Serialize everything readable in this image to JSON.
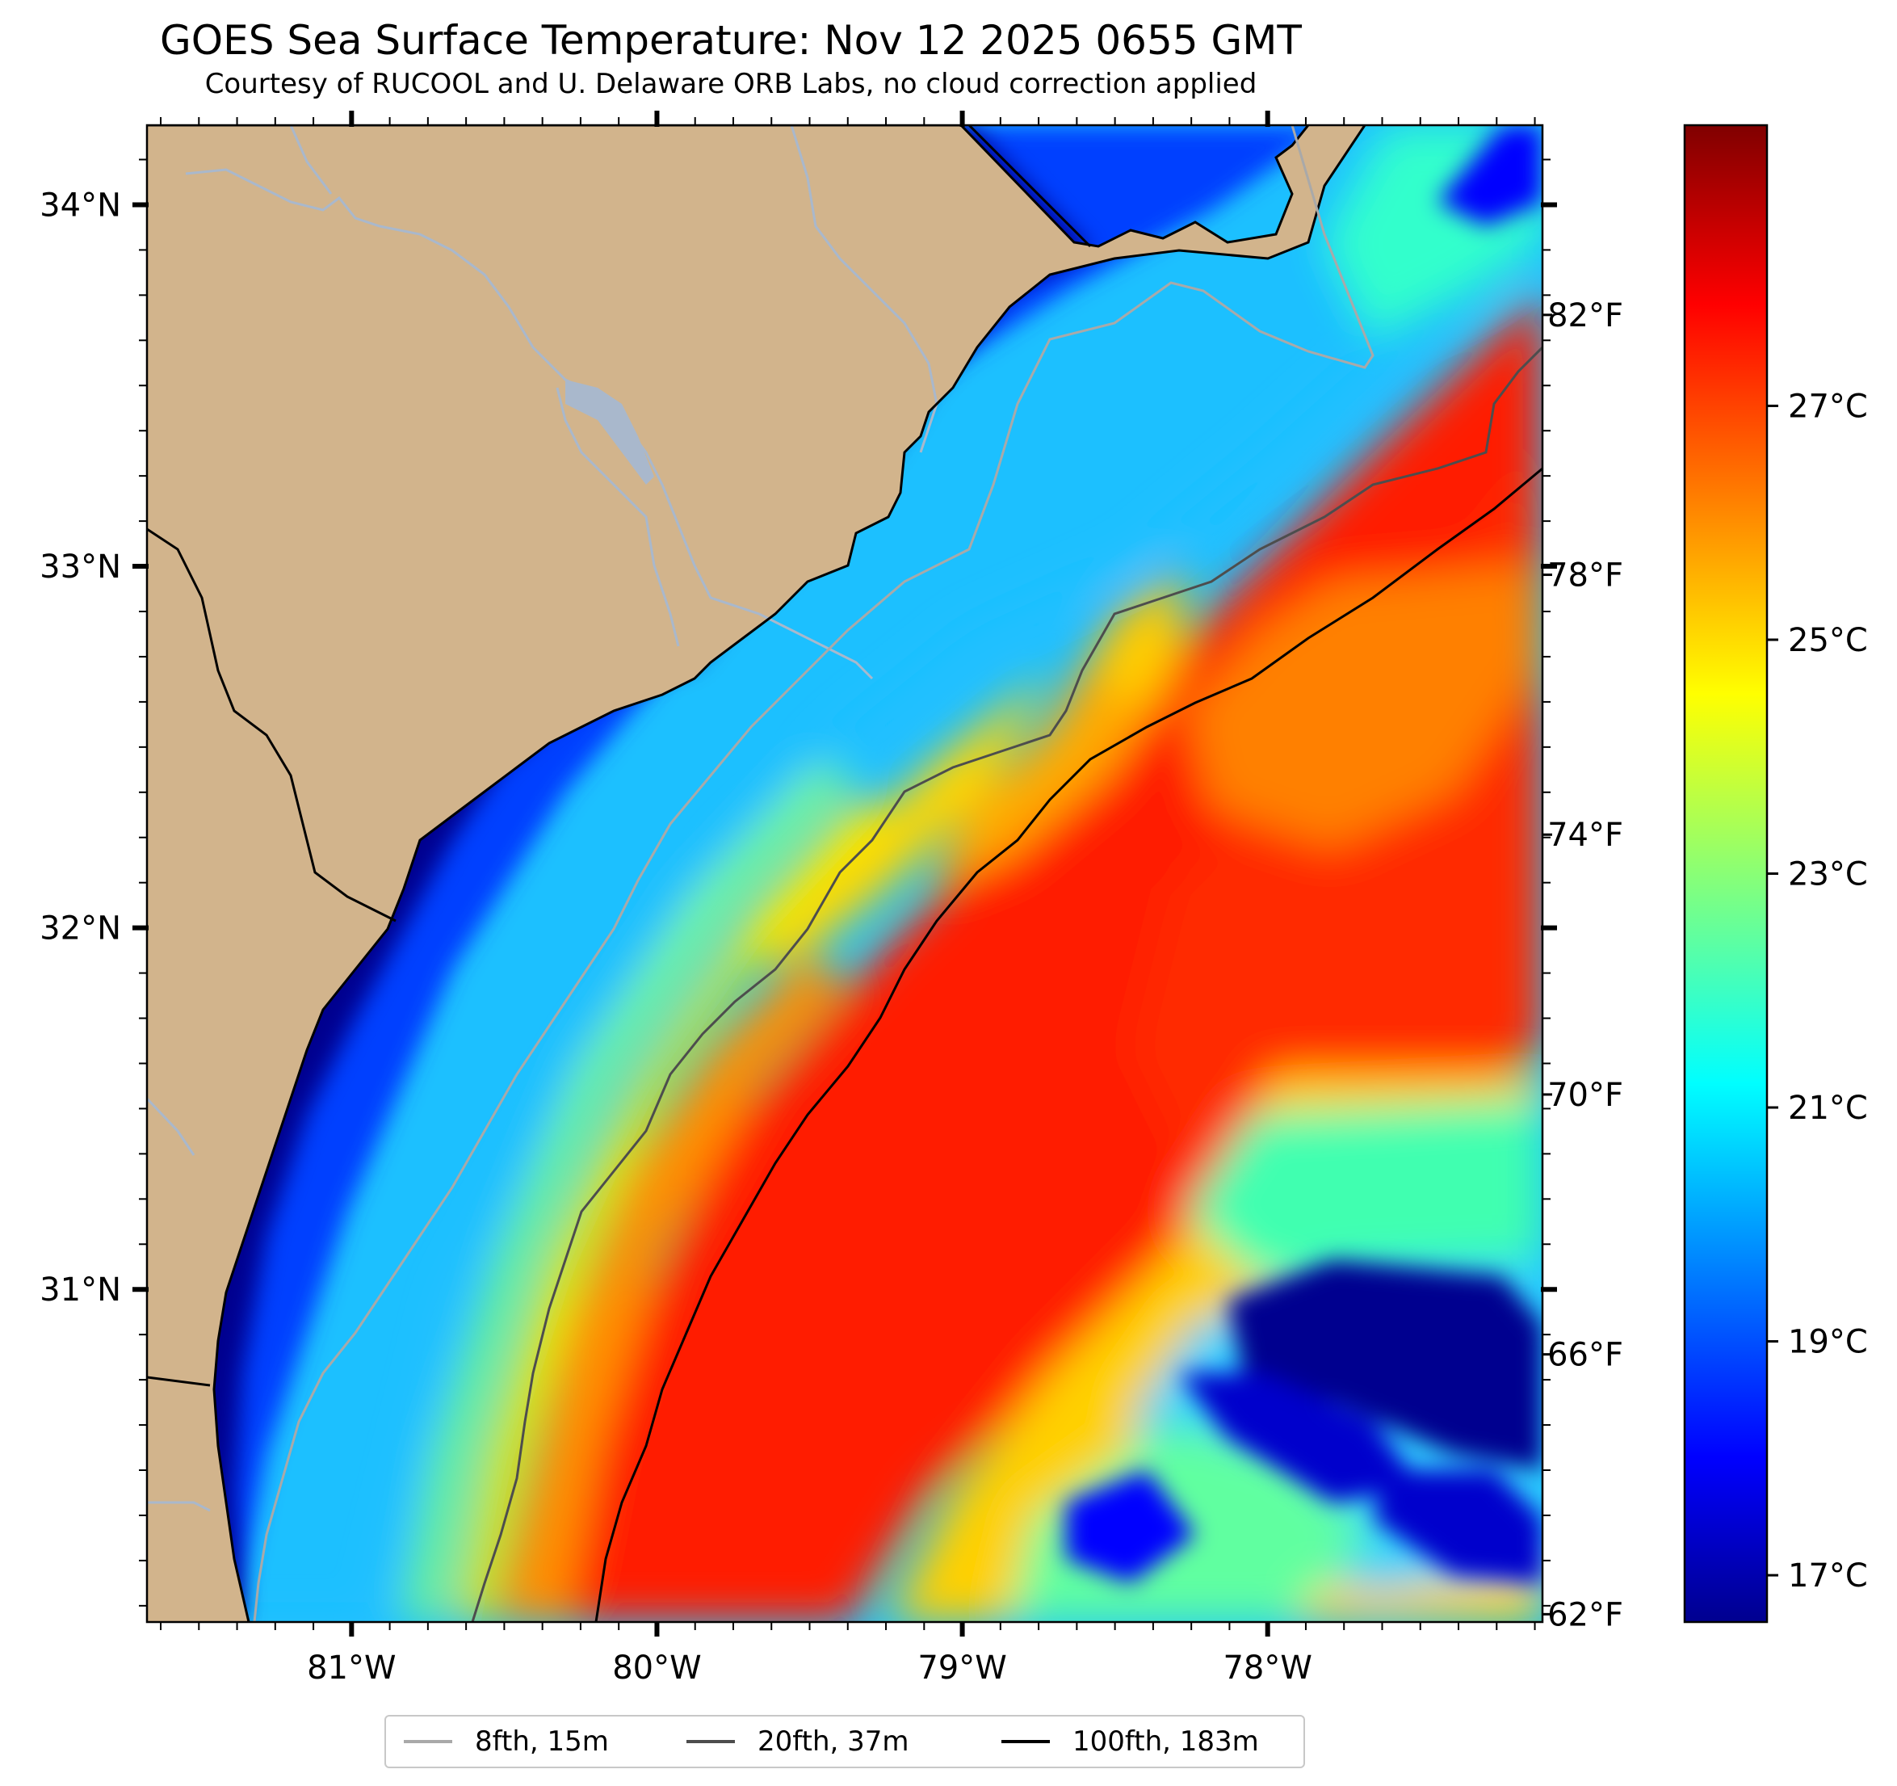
{
  "header": {
    "title": "GOES Sea Surface Temperature: Nov 12 2025 0655 GMT",
    "subtitle": "Courtesy of RUCOOL and U. Delaware ORB Labs, no cloud correction applied"
  },
  "map": {
    "lon_range": [
      -81.67,
      -77.1
    ],
    "lat_range": [
      30.08,
      34.22
    ],
    "land_color": "#d2b48c",
    "river_color": "#a9b8cc",
    "lon_ticks": [
      {
        "value": -81,
        "label": "81°W"
      },
      {
        "value": -80,
        "label": "80°W"
      },
      {
        "value": -79,
        "label": "79°W"
      },
      {
        "value": -78,
        "label": "78°W"
      }
    ],
    "lat_ticks": [
      {
        "value": 34,
        "label": "34°N"
      },
      {
        "value": 33,
        "label": "33°N"
      },
      {
        "value": 32,
        "label": "32°N"
      },
      {
        "value": 31,
        "label": "31°N"
      }
    ]
  },
  "colorbar": {
    "colormap": "jet",
    "range_c": [
      16.6,
      29.4
    ],
    "fahrenheit_ticks": [
      {
        "value": 62,
        "label": "62°F"
      },
      {
        "value": 66,
        "label": "66°F"
      },
      {
        "value": 70,
        "label": "70°F"
      },
      {
        "value": 74,
        "label": "74°F"
      },
      {
        "value": 78,
        "label": "78°F"
      },
      {
        "value": 82,
        "label": "82°F"
      }
    ],
    "celsius_ticks": [
      {
        "value": 17,
        "label": "17°C"
      },
      {
        "value": 19,
        "label": "19°C"
      },
      {
        "value": 21,
        "label": "21°C"
      },
      {
        "value": 23,
        "label": "23°C"
      },
      {
        "value": 25,
        "label": "25°C"
      },
      {
        "value": 27,
        "label": "27°C"
      }
    ]
  },
  "legend": {
    "items": [
      {
        "label": "8fth, 15m",
        "color": "#a9a9a9"
      },
      {
        "label": "20fth, 37m",
        "color": "#4d4d4d"
      },
      {
        "label": "100fth, 183m",
        "color": "#000000"
      }
    ]
  }
}
